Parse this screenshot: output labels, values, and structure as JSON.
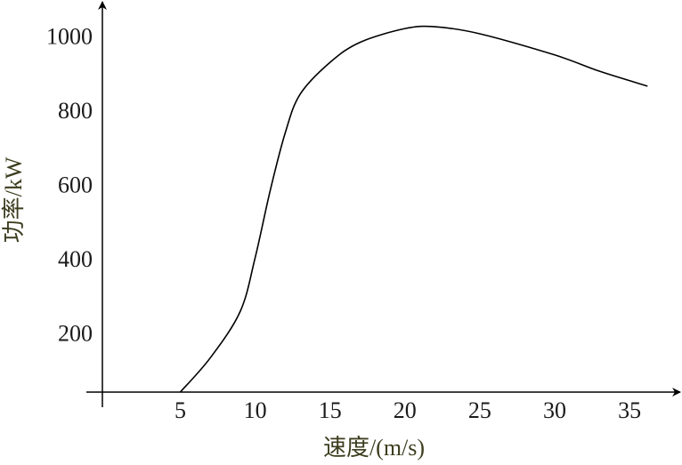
{
  "chart_data": {
    "type": "line",
    "xlabel": "速度/(m/s)",
    "ylabel": "功率/kW",
    "x": [
      5,
      7,
      9,
      10,
      11,
      12,
      13,
      15,
      17,
      20,
      22,
      25,
      30,
      33,
      36.2
    ],
    "series": [
      {
        "color": "#000000",
        "values": [
          48,
          140,
          265,
          410,
          590,
          745,
          850,
          936,
          990,
          1027,
          1032,
          1013,
          956,
          912,
          872
        ]
      }
    ],
    "xlim": [
      -0.2,
      38.5
    ],
    "xticks": [
      5,
      10,
      15,
      20,
      25,
      30,
      35
    ],
    "ylim": [
      48,
      1092
    ],
    "yticks": [
      200,
      400,
      600,
      800,
      1000
    ],
    "grid": false
  }
}
